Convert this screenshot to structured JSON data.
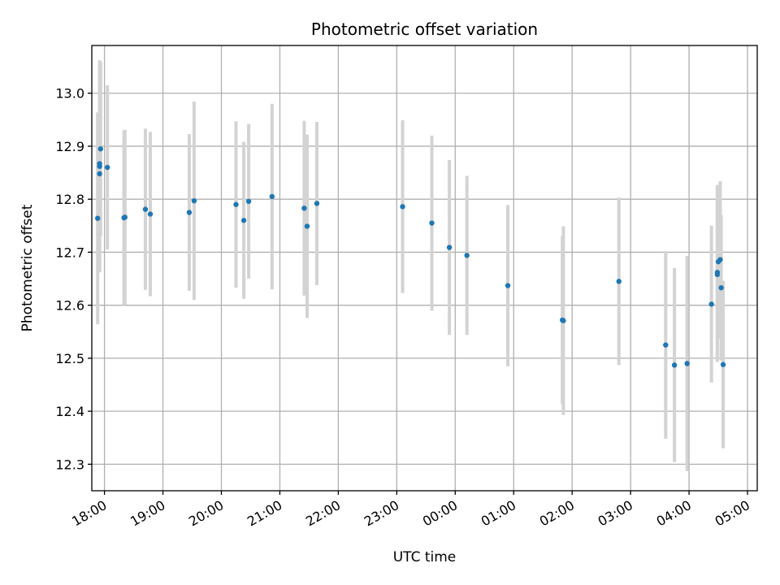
{
  "chart_data": {
    "type": "scatter",
    "title": "Photometric offset variation",
    "xlabel": "UTC time",
    "ylabel": "Photometric offset",
    "x_scale": "time",
    "xlim": [
      "17:47",
      "05:10"
    ],
    "ylim": [
      12.25,
      13.09
    ],
    "grid": true,
    "xticks": [
      "18:00",
      "19:00",
      "20:00",
      "21:00",
      "22:00",
      "23:00",
      "00:00",
      "01:00",
      "02:00",
      "03:00",
      "04:00",
      "05:00"
    ],
    "yticks": [
      12.3,
      12.4,
      12.5,
      12.6,
      12.7,
      12.8,
      12.9,
      13.0
    ],
    "ytick_labels": [
      "12.3",
      "12.4",
      "12.5",
      "12.6",
      "12.7",
      "12.8",
      "12.9",
      "13.0"
    ],
    "series": [
      {
        "errorbar_color": "#d3d3d3",
        "marker_color": "#1f77b4",
        "points": [
          {
            "x": "17:53",
            "y": 12.764,
            "err": 0.2
          },
          {
            "x": "17:55",
            "y": 12.867,
            "err": 0.19
          },
          {
            "x": "17:55",
            "y": 12.862,
            "err": 0.2
          },
          {
            "x": "17:55",
            "y": 12.848,
            "err": 0.185
          },
          {
            "x": "17:56",
            "y": 12.895,
            "err": 0.165
          },
          {
            "x": "18:03",
            "y": 12.86,
            "err": 0.155
          },
          {
            "x": "18:20",
            "y": 12.765,
            "err": 0.165
          },
          {
            "x": "18:21",
            "y": 12.766,
            "err": 0.165
          },
          {
            "x": "18:42",
            "y": 12.781,
            "err": 0.152
          },
          {
            "x": "18:47",
            "y": 12.772,
            "err": 0.155
          },
          {
            "x": "19:27",
            "y": 12.775,
            "err": 0.148
          },
          {
            "x": "19:32",
            "y": 12.797,
            "err": 0.187
          },
          {
            "x": "20:15",
            "y": 12.79,
            "err": 0.157
          },
          {
            "x": "20:23",
            "y": 12.76,
            "err": 0.148
          },
          {
            "x": "20:28",
            "y": 12.796,
            "err": 0.146
          },
          {
            "x": "20:52",
            "y": 12.805,
            "err": 0.175
          },
          {
            "x": "21:25",
            "y": 12.783,
            "err": 0.165
          },
          {
            "x": "21:28",
            "y": 12.749,
            "err": 0.173
          },
          {
            "x": "21:38",
            "y": 12.792,
            "err": 0.154
          },
          {
            "x": "23:06",
            "y": 12.786,
            "err": 0.163
          },
          {
            "x": "23:36",
            "y": 12.755,
            "err": 0.165
          },
          {
            "x": "23:54",
            "y": 12.709,
            "err": 0.165
          },
          {
            "x": "00:12",
            "y": 12.694,
            "err": 0.15
          },
          {
            "x": "00:54",
            "y": 12.637,
            "err": 0.152
          },
          {
            "x": "01:50",
            "y": 12.572,
            "err": 0.158
          },
          {
            "x": "01:51",
            "y": 12.571,
            "err": 0.178
          },
          {
            "x": "02:48",
            "y": 12.645,
            "err": 0.158
          },
          {
            "x": "03:36",
            "y": 12.525,
            "err": 0.177
          },
          {
            "x": "03:45",
            "y": 12.487,
            "err": 0.183
          },
          {
            "x": "03:58",
            "y": 12.49,
            "err": 0.203
          },
          {
            "x": "04:23",
            "y": 12.602,
            "err": 0.148
          },
          {
            "x": "04:29",
            "y": 12.658,
            "err": 0.165
          },
          {
            "x": "04:29",
            "y": 12.662,
            "err": 0.165
          },
          {
            "x": "04:30",
            "y": 12.682,
            "err": 0.145
          },
          {
            "x": "04:32",
            "y": 12.686,
            "err": 0.148
          },
          {
            "x": "04:33",
            "y": 12.633,
            "err": 0.137
          },
          {
            "x": "04:35",
            "y": 12.488,
            "err": 0.158
          }
        ]
      }
    ]
  }
}
